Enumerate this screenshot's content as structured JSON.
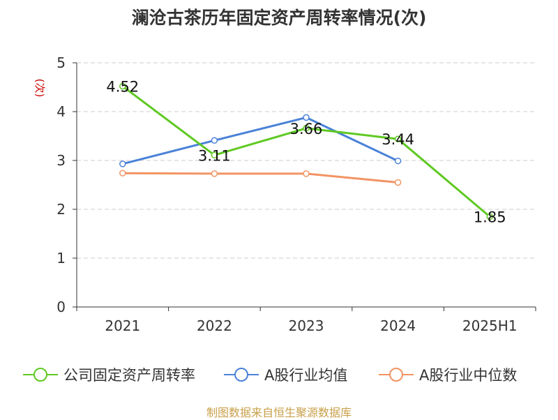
{
  "title": "澜沧古茶历年固定资产周转率情况(次)",
  "footer": "制图数据来自恒生聚源数据库",
  "colors": {
    "axis": "#333333",
    "grid": "#cccccc",
    "unit": "#cc0000",
    "footer": "#c8a04a"
  },
  "chart_data": {
    "type": "line",
    "categories": [
      "2021",
      "2022",
      "2023",
      "2024",
      "2025H1"
    ],
    "ylabel": "(次)",
    "ylim": [
      0,
      5
    ],
    "yticks": [
      "0",
      "1",
      "2",
      "3",
      "4",
      "5"
    ],
    "grid": true,
    "legend_position": "bottom",
    "series": [
      {
        "name": "公司固定资产周转率",
        "color": "#5fc922",
        "values": [
          4.52,
          3.11,
          3.66,
          3.44,
          1.85
        ],
        "labels": [
          "4.52",
          "3.11",
          "3.66",
          "3.44",
          "1.85"
        ]
      },
      {
        "name": "A股行业均值",
        "color": "#4a82d8",
        "values": [
          2.93,
          3.41,
          3.88,
          2.99,
          null
        ]
      },
      {
        "name": "A股行业中位数",
        "color": "#f29463",
        "values": [
          2.74,
          2.73,
          2.73,
          2.55,
          null
        ]
      }
    ]
  }
}
